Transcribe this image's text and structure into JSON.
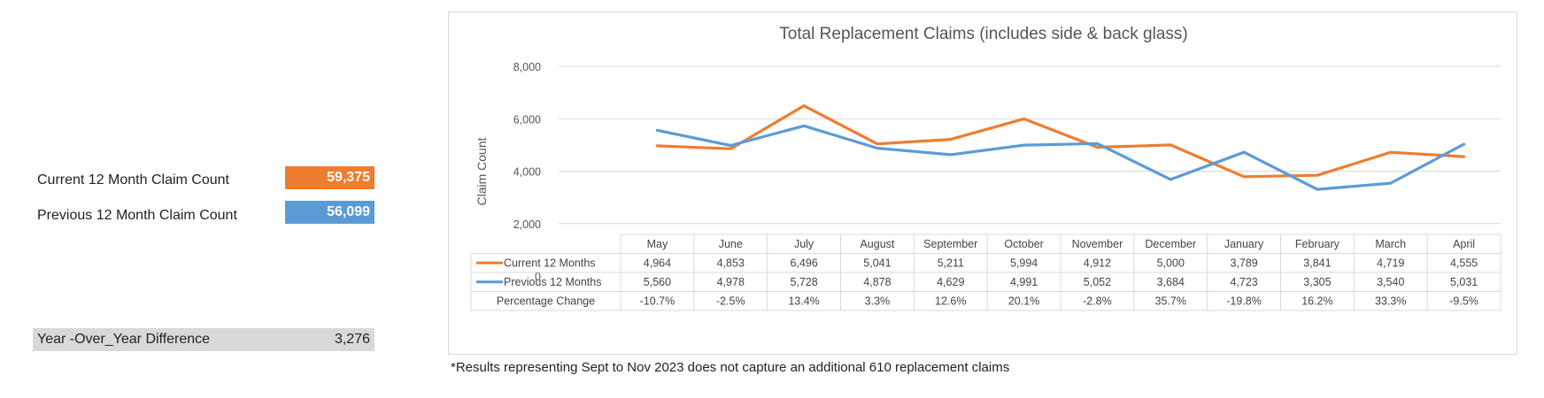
{
  "summary": {
    "current_label": "Current 12 Month Claim Count",
    "current_value": "59,375",
    "previous_label": "Previous 12 Month Claim Count",
    "previous_value": "56,099",
    "yoy_label": "Year -Over_Year Difference",
    "yoy_value": "3,276"
  },
  "colors": {
    "current": "#ed7d31",
    "previous": "#5b9bd5",
    "grid": "#d9d9d9",
    "yoy_bg": "#d9d9d9"
  },
  "footnote": "*Results representing Sept to Nov 2023 does not capture an additional 610 replacement claims",
  "chart_data": {
    "type": "line",
    "title": "Total Replacement Claims (includes side & back glass)",
    "ylabel": "Claim Count",
    "xlabel": "",
    "ylim": [
      0,
      8000
    ],
    "yticks": [
      "0",
      "2,000",
      "4,000",
      "6,000",
      "8,000"
    ],
    "grid": true,
    "categories": [
      "May",
      "June",
      "July",
      "August",
      "September",
      "October",
      "November",
      "December",
      "January",
      "February",
      "March",
      "April"
    ],
    "series": [
      {
        "name": "Current 12 Months",
        "values": [
          4964,
          4853,
          6496,
          5041,
          5211,
          5994,
          4912,
          5000,
          3789,
          3841,
          4719,
          4555
        ],
        "labels": [
          "4,964",
          "4,853",
          "6,496",
          "5,041",
          "5,211",
          "5,994",
          "4,912",
          "5,000",
          "3,789",
          "3,841",
          "4,719",
          "4,555"
        ]
      },
      {
        "name": "Previous 12 Months",
        "values": [
          5560,
          4978,
          5728,
          4878,
          4629,
          4991,
          5052,
          3684,
          4723,
          3305,
          3540,
          5031
        ],
        "labels": [
          "5,560",
          "4,978",
          "5,728",
          "4,878",
          "4,629",
          "4,991",
          "5,052",
          "3,684",
          "4,723",
          "3,305",
          "3,540",
          "5,031"
        ]
      }
    ],
    "table_row_label": "Percentage Change",
    "percentage_change": [
      "-10.7%",
      "-2.5%",
      "13.4%",
      "3.3%",
      "12.6%",
      "20.1%",
      "-2.8%",
      "35.7%",
      "-19.8%",
      "16.2%",
      "33.3%",
      "-9.5%"
    ]
  }
}
